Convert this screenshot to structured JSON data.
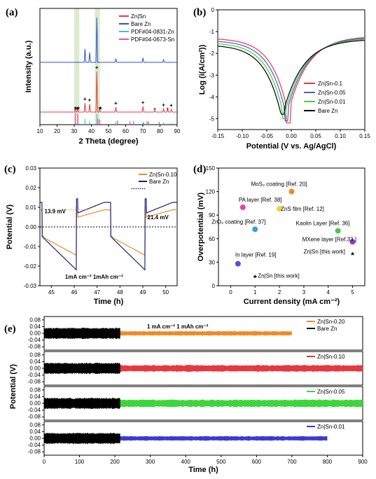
{
  "chart_data": [
    {
      "panel": "(a)",
      "type": "line",
      "xlabel": "2 Theta (degree)",
      "ylabel": "Intensity (a.u.)",
      "xlim": [
        10,
        90
      ],
      "xticks": [
        "10",
        "20",
        "30",
        "40",
        "50",
        "60",
        "70",
        "80",
        "90"
      ],
      "highlight_x_ranges": [
        [
          30,
          33
        ],
        [
          42,
          45
        ]
      ],
      "series": [
        {
          "name": "Zn|Sn",
          "color": "#e8383d",
          "peaks": [
            [
              30.6,
              0.08
            ],
            [
              32.0,
              0.07
            ],
            [
              36.3,
              0.22
            ],
            [
              39.0,
              0.2
            ],
            [
              43.2,
              1.0
            ],
            [
              44.9,
              0.06
            ],
            [
              54.3,
              0.12
            ],
            [
              70.1,
              0.14
            ],
            [
              77.0,
              0.05
            ],
            [
              82.1,
              0.08
            ],
            [
              84.5,
              0.06
            ],
            [
              86.6,
              0.07
            ]
          ]
        },
        {
          "name": "Bare Zn",
          "color": "#2f4fd6",
          "peaks": [
            [
              36.3,
              0.3
            ],
            [
              39.0,
              0.22
            ],
            [
              43.2,
              1.0
            ],
            [
              54.3,
              0.08
            ],
            [
              70.1,
              0.1
            ],
            [
              82.1,
              0.06
            ]
          ]
        },
        {
          "name": "PDF#04-0831-Zn",
          "color": "#36c6d6",
          "peaks": [
            [
              36.3,
              0.5
            ],
            [
              39.0,
              0.25
            ],
            [
              43.2,
              1.0
            ],
            [
              54.3,
              0.25
            ],
            [
              70.1,
              0.2
            ],
            [
              70.6,
              0.15
            ],
            [
              82.1,
              0.15
            ],
            [
              86.6,
              0.08
            ]
          ]
        },
        {
          "name": "PDF#04-0673-Sn",
          "color": "#e84fa8",
          "peaks": [
            [
              30.6,
              1.0
            ],
            [
              32.0,
              0.9
            ],
            [
              43.9,
              0.4
            ],
            [
              44.9,
              0.3
            ],
            [
              55.3,
              0.2
            ],
            [
              62.5,
              0.1
            ],
            [
              64.6,
              0.15
            ],
            [
              72.4,
              0.1
            ],
            [
              73.2,
              0.12
            ],
            [
              79.5,
              0.08
            ]
          ]
        }
      ],
      "annotations": {
        "plus_marks": [
          36.3,
          39.0,
          43.2,
          54.3,
          70.1,
          82.1,
          86.6
        ],
        "star_marks": [
          30.6,
          32.0,
          44.9
        ],
        "x_marks": [
          77.0,
          84.5
        ]
      }
    },
    {
      "panel": "(b)",
      "type": "line",
      "xlabel": "Potential (V vs. Ag/AgCl)",
      "ylabel": "Log (i(A/cm²))",
      "xlim": [
        -0.15,
        0.15
      ],
      "ylim": [
        -5.5,
        0
      ],
      "xticks": [
        "-0.15",
        "-0.10",
        "-0.05",
        "0.00",
        "0.05",
        "0.10",
        "0.15"
      ],
      "yticks": [
        "0",
        "-1",
        "-2",
        "-3",
        "-4",
        "-5"
      ],
      "legend_position": "bottom-right",
      "series": [
        {
          "name": "Zn|Sn-0.1",
          "color": "#e8383d",
          "ecorr": -0.006,
          "icorr": -5.2
        },
        {
          "name": "Zn|Sn-0.05",
          "color": "#4a5be6",
          "ecorr": -0.01,
          "icorr": -5.1
        },
        {
          "name": "Zn|Sn-0.01",
          "color": "#3cd63c",
          "ecorr": -0.014,
          "icorr": -5.0
        },
        {
          "name": "Bare Zn",
          "color": "#000000",
          "ecorr": -0.018,
          "icorr": -4.8
        }
      ]
    },
    {
      "panel": "(c)",
      "type": "line",
      "xlabel": "Time (h)",
      "ylabel": "Potential (V)",
      "xlim": [
        44.5,
        50.5
      ],
      "ylim": [
        -0.03,
        0.03
      ],
      "xticks": [
        "45",
        "46",
        "47",
        "48",
        "49",
        "50"
      ],
      "yticks": [
        "0.03",
        "0.02",
        "0.01",
        "0.00",
        "-0.01",
        "-0.02",
        "-0.03"
      ],
      "legend_position": "top-right",
      "series": [
        {
          "name": "Zn|Sn-0.10",
          "color": "#f08a24",
          "charge_plateau": 0.0087,
          "discharge_end": -0.0145
        },
        {
          "name": "Bare Zn",
          "color": "#1a237e",
          "charge_plateau": 0.0125,
          "discharge_end": -0.022
        }
      ],
      "annotations": {
        "left": "13.9 mV",
        "right": "21.4 mV",
        "condition": "1mA cm⁻²  1mAh cm⁻²"
      }
    },
    {
      "panel": "(d)",
      "type": "scatter",
      "xlabel": "Current density (mA cm⁻²)",
      "ylabel": "Overpotential (mV)",
      "xlim": [
        -0.5,
        5.5
      ],
      "ylim": [
        0,
        150
      ],
      "xticks": [
        "0",
        "1",
        "2",
        "3",
        "4",
        "5"
      ],
      "yticks": [
        "0",
        "30",
        "60",
        "90",
        "120",
        "150"
      ],
      "points": [
        {
          "label": "MoS₂ coating [Ref. 20]",
          "x": 2.5,
          "y": 120,
          "color": "#f08a24",
          "marker": "circle"
        },
        {
          "label": "PA layer [Ref. 38]",
          "x": 0.5,
          "y": 100,
          "color": "#e83fae",
          "marker": "circle"
        },
        {
          "label": "ZnS film [Ref. 12]",
          "x": 2.0,
          "y": 98,
          "color": "#f2d132",
          "marker": "circle"
        },
        {
          "label": "ZrO₂ coating [Ref. 37]",
          "x": 1.0,
          "y": 72,
          "color": "#3aa0e0",
          "marker": "circle"
        },
        {
          "label": "Kaolin Layer [Ref. 36]",
          "x": 4.4,
          "y": 70,
          "color": "#46c84a",
          "marker": "circle"
        },
        {
          "label": "MXene layer [Ref.33 ]",
          "x": 5.0,
          "y": 56,
          "color": "#a034d6",
          "marker": "circle"
        },
        {
          "label": "Zn|Sn [this work]",
          "x": 5.0,
          "y": 43,
          "color": "#e32222",
          "marker": "star"
        },
        {
          "label": "In layer [Ref. 19]",
          "x": 0.3,
          "y": 28,
          "color": "#5b4fd6",
          "marker": "circle"
        },
        {
          "label": "Zn|Sn [this work]",
          "x": 1.0,
          "y": 14,
          "color": "#e32222",
          "marker": "star"
        }
      ]
    },
    {
      "panel": "(e)",
      "type": "line",
      "xlabel": "Time (h)",
      "ylabel": "Potential (V)",
      "xlim": [
        0,
        900
      ],
      "xticks": [
        "0",
        "100",
        "200",
        "300",
        "400",
        "500",
        "600",
        "700",
        "800",
        "900"
      ],
      "yticks": [
        "0.08",
        "0.04",
        "0.00",
        "-0.04",
        "-0.08"
      ],
      "condition": "1 mA cm⁻²  1 mAh cm⁻²",
      "subpanels": [
        {
          "series": [
            {
              "name": "Zn|Sn-0.20",
              "color": "#f08a24",
              "end_time": 700,
              "amp": 0.012
            },
            {
              "name": "Bare Zn",
              "color": "#000000",
              "end_time": 215,
              "amp": 0.03
            }
          ]
        },
        {
          "series": [
            {
              "name": "Zn|Sn-0.10",
              "color": "#e8383d",
              "end_time": 900,
              "amp": 0.018
            }
          ],
          "baseline": {
            "color": "#000000",
            "end_time": 215
          }
        },
        {
          "series": [
            {
              "name": "Zn|Sn-0.05",
              "color": "#3cd63c",
              "end_time": 900,
              "amp": 0.02
            }
          ],
          "baseline": {
            "color": "#000000",
            "end_time": 215
          }
        },
        {
          "series": [
            {
              "name": "Zn|Sn-0.01",
              "color": "#3a3ad6",
              "end_time": 800,
              "amp": 0.012
            }
          ],
          "baseline": {
            "color": "#000000",
            "end_time": 215
          }
        }
      ]
    }
  ]
}
